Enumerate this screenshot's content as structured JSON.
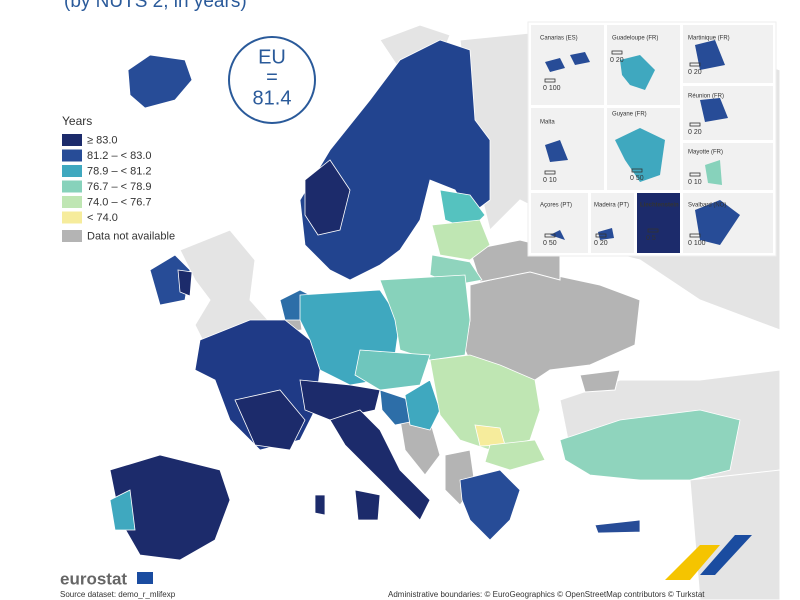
{
  "header": {
    "subtitle": "(by NUTS 2, in years)"
  },
  "badge": {
    "label": "EU",
    "equals": "=",
    "value": "81.4"
  },
  "legend": {
    "title": "Years",
    "items": [
      {
        "label": "≥ 83.0",
        "color": "#1c2b6b"
      },
      {
        "label": "81.2 – < 83.0",
        "color": "#274c97"
      },
      {
        "label": "78.9 – < 81.2",
        "color": "#3fa8bf"
      },
      {
        "label": "76.7 – < 78.9",
        "color": "#87d2bb"
      },
      {
        "label": "74.0 – < 76.7",
        "color": "#bfe6b3"
      },
      {
        "label": "< 74.0",
        "color": "#f6ec9c"
      },
      {
        "label": "Data not available",
        "color": "#b4b4b4"
      }
    ]
  },
  "insets": [
    {
      "label": "Canarias (ES)",
      "scale": "0  100"
    },
    {
      "label": "Guadeloupe (FR)",
      "scale": "0  20"
    },
    {
      "label": "Martinique (FR)",
      "scale": "0  20"
    },
    {
      "label": "Malta",
      "scale": "0  10"
    },
    {
      "label": "Guyane (FR)",
      "scale": "0  50"
    },
    {
      "label": "Réunion (FR)",
      "scale": "0  20"
    },
    {
      "label": "Mayotte (FR)",
      "scale": "0  10"
    },
    {
      "label": "Açores (PT)",
      "scale": "0  50"
    },
    {
      "label": "Madeira (PT)",
      "scale": "0  20"
    },
    {
      "label": "Liechtenstein",
      "scale": "0  5"
    },
    {
      "label": "Svalbard (NO)",
      "scale": "0  100"
    }
  ],
  "footer": {
    "logo": "eurostat",
    "source": "Source dataset: demo_r_mlifexp",
    "credits": "Administrative boundaries: © EuroGeographics © OpenStreetMap contributors © Turkstat"
  }
}
